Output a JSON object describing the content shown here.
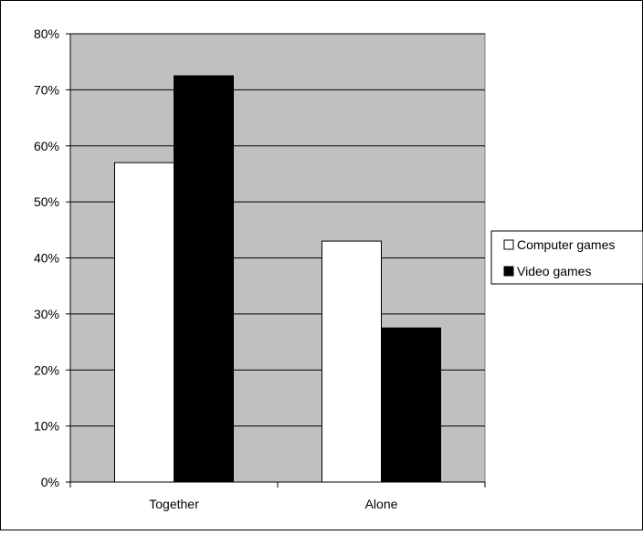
{
  "chart_data": {
    "type": "bar",
    "title": "",
    "xlabel": "",
    "ylabel": "",
    "categories": [
      "Together",
      "Alone"
    ],
    "series": [
      {
        "name": "Computer games",
        "values": [
          57,
          43
        ],
        "color": "#ffffff"
      },
      {
        "name": "Video games",
        "values": [
          72.5,
          27.5
        ],
        "color": "#000000"
      }
    ],
    "ylim": [
      0,
      80
    ],
    "ytick_step": 10,
    "ytick_format": "percent",
    "ytick_labels": [
      "0%",
      "10%",
      "20%",
      "30%",
      "40%",
      "50%",
      "60%",
      "70%",
      "80%"
    ],
    "grid": true,
    "plot_background": "#c0c0c0",
    "legend_position": "right"
  }
}
